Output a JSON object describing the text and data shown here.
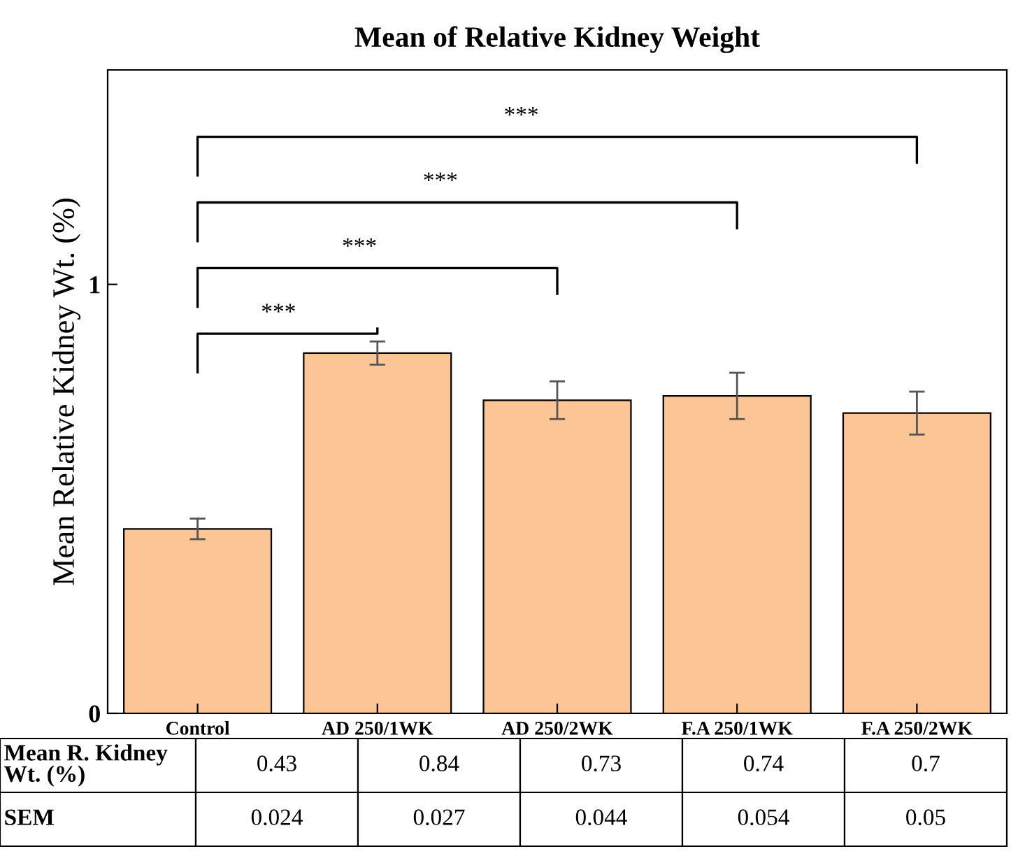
{
  "chart_data": {
    "type": "bar",
    "title": "Mean of Relative Kidney Weight",
    "ylabel": "Mean Relative Kidney Wt. (%)",
    "categories": [
      "Control",
      "AD 250/1WK",
      "AD 250/2WK",
      "F.A 250/1WK",
      "F.A 250/2WK"
    ],
    "values": [
      0.43,
      0.84,
      0.73,
      0.74,
      0.7
    ],
    "errors": [
      0.024,
      0.027,
      0.044,
      0.054,
      0.05
    ],
    "color": "#fbc596",
    "ylim": [
      0,
      1.5
    ],
    "yticks": [
      0,
      1
    ],
    "grid": false,
    "data_labels": true,
    "annotations": [
      "***",
      "***",
      "***",
      "***",
      "Mean R. Kidney\nWt. (%)",
      "SEM",
      "0.024",
      "0.027",
      "0.044",
      "0.054",
      "0.05"
    ]
  }
}
